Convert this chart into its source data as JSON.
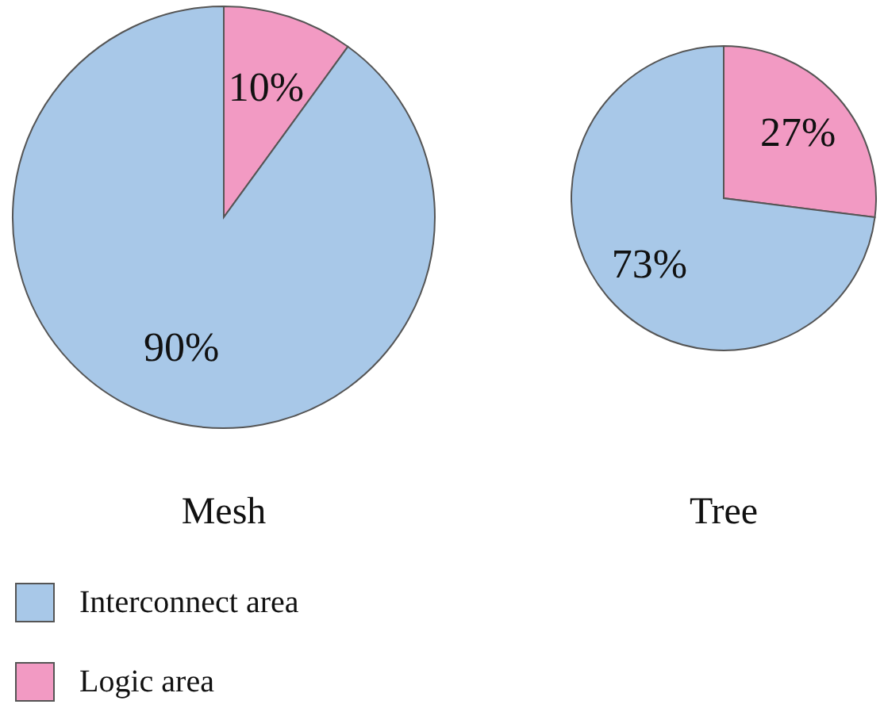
{
  "chart_data": [
    {
      "type": "pie",
      "title": "Mesh",
      "categories": [
        "Interconnect area",
        "Logic area"
      ],
      "values": [
        90,
        10
      ],
      "colors": [
        "#a8c8e8",
        "#f29ac3"
      ],
      "value_labels": [
        "90%",
        "10%"
      ],
      "legend": "bottom left"
    },
    {
      "type": "pie",
      "title": "Tree",
      "categories": [
        null,
        null
      ],
      "values": [
        73,
        27
      ],
      "colors": [
        "#a8c8e8",
        "#f29ac3"
      ],
      "value_labels": [
        "73%",
        "27%"
      ]
    }
  ]
}
